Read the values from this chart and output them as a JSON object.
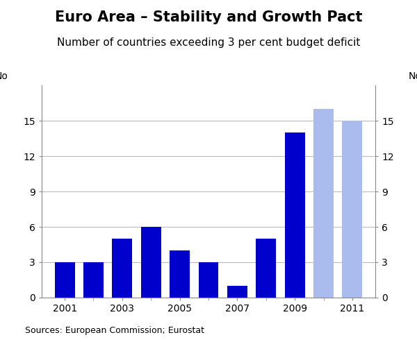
{
  "title": "Euro Area – Stability and Growth Pact",
  "subtitle": "Number of countries exceeding 3 per cent budget deficit",
  "years": [
    2001,
    2002,
    2003,
    2004,
    2005,
    2006,
    2007,
    2008,
    2009,
    2010,
    2011
  ],
  "values": [
    3,
    3,
    5,
    6,
    4,
    3,
    1,
    5,
    14,
    16,
    15
  ],
  "bar_colors": [
    "#0000CC",
    "#0000CC",
    "#0000CC",
    "#0000CC",
    "#0000CC",
    "#0000CC",
    "#0000CC",
    "#0000CC",
    "#0000CC",
    "#AABBEE",
    "#AABBEE"
  ],
  "ylim": [
    0,
    18
  ],
  "yticks": [
    0,
    3,
    6,
    9,
    12,
    15
  ],
  "ylabel_left": "No",
  "ylabel_right": "No",
  "xlabel_source": "Sources: European Commission; Eurostat",
  "background_color": "#ffffff",
  "grid_color": "#bbbbbb",
  "title_fontsize": 15,
  "subtitle_fontsize": 11,
  "tick_fontsize": 10,
  "label_fontsize": 10,
  "source_fontsize": 9,
  "bar_width": 0.7,
  "xlim_left": 2000.2,
  "xlim_right": 2011.8
}
